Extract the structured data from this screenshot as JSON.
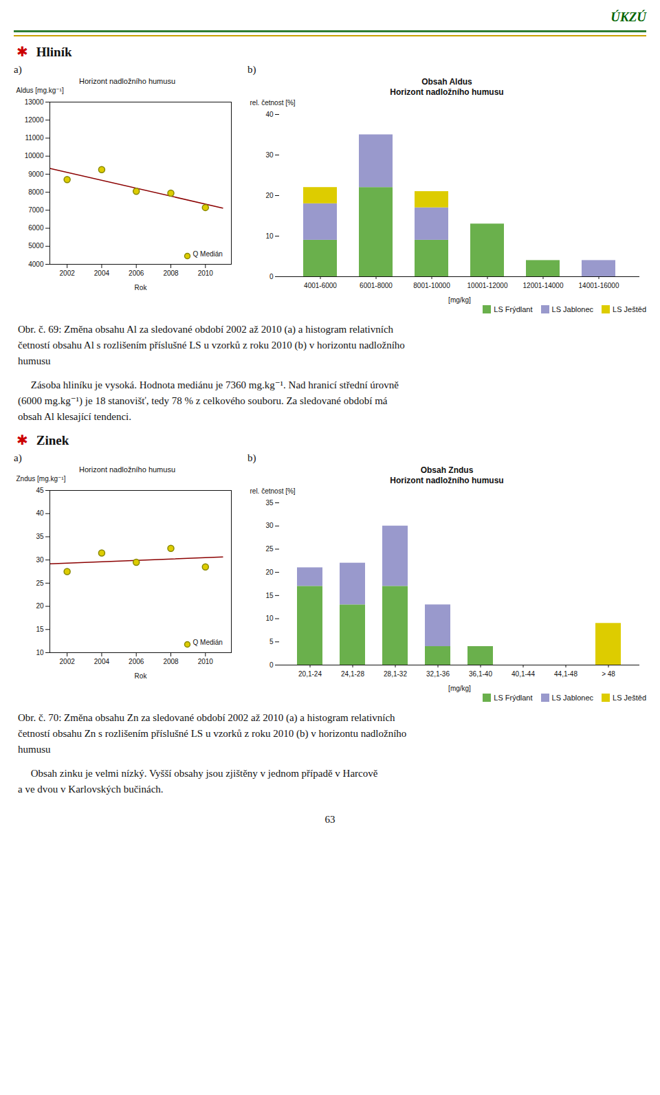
{
  "title": "ÚKZÚ",
  "page_number": "63",
  "sections": [
    {
      "symbol": "✱",
      "title": "Hliník",
      "caption": [
        "Obr. č. 69: Změna obsahu Al za sledované období 2002 až 2010 (a) a histogram relativních",
        "četností obsahu Al s rozlišením příslušné LS u vzorků z roku 2010 (b) v horizontu nadložního",
        "humusu"
      ],
      "text": [
        "     Zásoba hliníku je vysoká. Hodnota mediánu je 7360 mg.kg⁻¹. Nad hranicí střední úrovně",
        "(6000 mg.kg⁻¹) je 18 stanovišť, tedy 78 % z celkového souboru. Za sledované období má",
        "obsah Al klesající tendenci."
      ]
    },
    {
      "symbol": "✱",
      "title": "Zinek",
      "caption": [
        "Obr. č. 70: Změna obsahu Zn za sledované období 2002 až 2010 (a) a histogram relativních",
        "četností obsahu Zn s rozlišením příslušné LS u vzorků z roku 2010 (b) v horizontu nadložního",
        "humusu"
      ],
      "text": [
        "     Obsah zinku je velmi nízký. Vyšší obsahy jsou zjištěny v jednom případě v Harcově",
        "a ve dvou v Karlovských bučinách."
      ]
    }
  ],
  "chart_data": [
    {
      "type": "scatter",
      "panel": "a)",
      "title": "Horizont nadložního humusu",
      "xlabel": "Rok",
      "ylabel": "Aldus [mg.kg⁻¹]",
      "x": [
        2002,
        2004,
        2006,
        2008,
        2010
      ],
      "series": [
        {
          "name": "Q Medián",
          "type": "scatter",
          "marker": "circle",
          "color": "#ddcc00",
          "values": [
            8700,
            9250,
            8050,
            7950,
            7150
          ]
        },
        {
          "type": "line",
          "line_style": "solid",
          "color": "#8b0000",
          "x": [
            2001,
            2011
          ],
          "values": [
            9320,
            7120
          ]
        }
      ],
      "xlim": [
        2001,
        2011.5
      ],
      "xticks": [
        2002,
        2004,
        2006,
        2008,
        2010
      ],
      "ylim": [
        4000,
        13000
      ],
      "yticks": [
        4000,
        5000,
        6000,
        7000,
        8000,
        9000,
        10000,
        11000,
        12000,
        13000
      ],
      "legend": "lower right",
      "grid": false
    },
    {
      "type": "bar",
      "stacked": true,
      "panel": "b)",
      "title": "Obsah Aldus",
      "subtitle": "Horizont nadložního humusu",
      "xlabel": "[mg/kg]",
      "ylabel": "rel. četnost [%]",
      "categories": [
        "4001-6000",
        "6001-8000",
        "8001-10000",
        "10001-12000",
        "12001-14000",
        "14001-16000"
      ],
      "series": [
        {
          "name": "LS Frýdlant",
          "color": "#6ab04c",
          "values": [
            9,
            22,
            9,
            13,
            4,
            0
          ]
        },
        {
          "name": "LS Jablonec",
          "color": "#9999cc",
          "values": [
            9,
            13,
            8,
            0,
            0,
            4
          ]
        },
        {
          "name": "LS Ještěd",
          "color": "#ddcc00",
          "values": [
            4,
            0,
            4,
            0,
            0,
            0
          ]
        }
      ],
      "ylim": [
        0,
        40
      ],
      "yticks": [
        0,
        10,
        20,
        30,
        40
      ],
      "legend": "below",
      "grid": false
    },
    {
      "type": "scatter",
      "panel": "a)",
      "title": "Horizont nadložního humusu",
      "xlabel": "Rok",
      "ylabel": "Zndus [mg.kg⁻¹]",
      "x": [
        2002,
        2004,
        2006,
        2008,
        2010
      ],
      "series": [
        {
          "name": "Q Medián",
          "type": "scatter",
          "marker": "circle",
          "color": "#ddcc00",
          "values": [
            27.5,
            31.5,
            29.5,
            32.5,
            28.5
          ]
        },
        {
          "type": "line",
          "line_style": "solid",
          "color": "#8b0000",
          "x": [
            2001,
            2011
          ],
          "values": [
            29.15,
            30.65
          ]
        }
      ],
      "xlim": [
        2001,
        2011.5
      ],
      "xticks": [
        2002,
        2004,
        2006,
        2008,
        2010
      ],
      "ylim": [
        10,
        45
      ],
      "yticks": [
        10,
        15,
        20,
        25,
        30,
        35,
        40,
        45
      ],
      "legend": "lower right",
      "grid": false
    },
    {
      "type": "bar",
      "stacked": true,
      "panel": "b)",
      "title": "Obsah Zndus",
      "subtitle": "Horizont nadložního humusu",
      "xlabel": "[mg/kg]",
      "ylabel": "rel. četnost [%]",
      "categories": [
        "20,1-24",
        "24,1-28",
        "28,1-32",
        "32,1-36",
        "36,1-40",
        "40,1-44",
        "44,1-48",
        "> 48"
      ],
      "series": [
        {
          "name": "LS Frýdlant",
          "color": "#6ab04c",
          "values": [
            17,
            13,
            17,
            4,
            4,
            0,
            0,
            0
          ]
        },
        {
          "name": "LS Jablonec",
          "color": "#9999cc",
          "values": [
            4,
            9,
            13,
            9,
            0,
            0,
            0,
            0
          ]
        },
        {
          "name": "LS Ještěd",
          "color": "#ddcc00",
          "values": [
            0,
            0,
            0,
            0,
            0,
            0,
            0,
            9
          ]
        }
      ],
      "ylim": [
        0,
        35
      ],
      "yticks": [
        0,
        5,
        10,
        15,
        20,
        25,
        30,
        35
      ],
      "legend": "below",
      "grid": false
    }
  ]
}
